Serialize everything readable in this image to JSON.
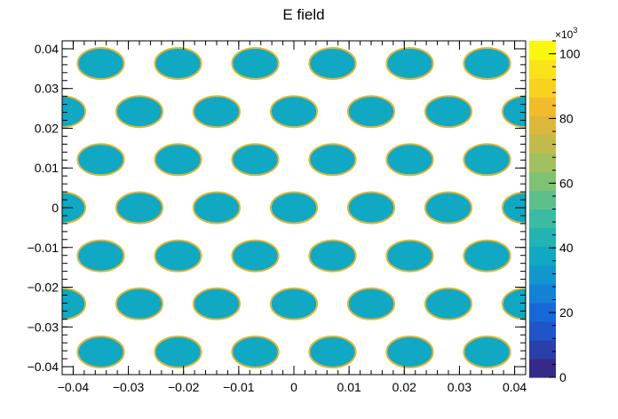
{
  "chart_data": {
    "type": "heatmap",
    "title": "E field",
    "xlabel": "",
    "ylabel": "",
    "xlim": [
      -0.042,
      0.042
    ],
    "ylim": [
      -0.042,
      0.042
    ],
    "x_ticks": [
      -0.04,
      -0.03,
      -0.02,
      -0.01,
      0,
      0.01,
      0.02,
      0.03,
      0.04
    ],
    "x_tick_labels": [
      "−0.04",
      "−0.03",
      "−0.02",
      "−0.01",
      "0",
      "0.01",
      "0.02",
      "0.03",
      "0.04"
    ],
    "y_ticks": [
      -0.04,
      -0.03,
      -0.02,
      -0.01,
      0,
      0.01,
      0.02,
      0.03,
      0.04
    ],
    "y_tick_labels": [
      "−0.04",
      "−0.03",
      "−0.02",
      "−0.01",
      "0",
      "0.01",
      "0.02",
      "0.03",
      "0.04"
    ],
    "colorbar": {
      "min": 0,
      "max": 104,
      "multiplier_base": "×10",
      "multiplier_exponent": "3",
      "ticks": [
        0,
        20,
        40,
        60,
        80,
        100
      ],
      "tick_labels": [
        "0",
        "20",
        "40",
        "60",
        "80",
        "100"
      ],
      "palette": [
        "#352a87",
        "#2a3fa8",
        "#1f55c8",
        "#1769d8",
        "#1482d4",
        "#1197cc",
        "#10a8c2",
        "#22b3b2",
        "#3bbba1",
        "#5dc08a",
        "#80c274",
        "#a2c05f",
        "#c2bb4c",
        "#ddb63c",
        "#f2bb2c",
        "#f9d11f",
        "#f9e31a",
        "#f9f70e"
      ]
    },
    "grid": false,
    "hole_pitch_x": 0.014,
    "hole_row_pitch_y": 0.0121,
    "hole_radius_x": 0.0042,
    "hole_radius_y": 0.0039,
    "hole_field_value_k": 40,
    "hole_rim_value_k": 80,
    "outside_field": "empty (white)"
  }
}
